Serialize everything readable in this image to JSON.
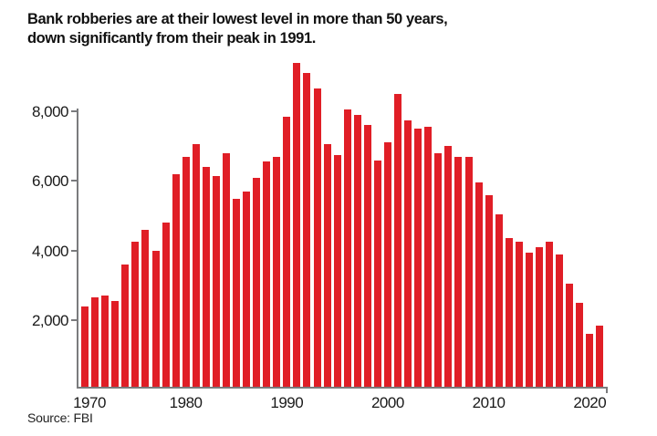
{
  "title": {
    "line1": "Bank robberies are at their lowest level in more than 50 years,",
    "line2": "down significantly from their peak in 1991."
  },
  "source": "Source: FBI",
  "colors": {
    "bar": "#e01e26",
    "axis": "#7a7b7d",
    "text": "#1a1a1a"
  },
  "chart_data": {
    "type": "bar",
    "title": "Bank robberies are at their lowest level in more than 50 years, down significantly from their peak in 1991.",
    "source": "FBI",
    "x": [
      1970,
      1971,
      1972,
      1973,
      1974,
      1975,
      1976,
      1977,
      1978,
      1979,
      1980,
      1981,
      1982,
      1983,
      1984,
      1985,
      1986,
      1987,
      1988,
      1989,
      1990,
      1991,
      1992,
      1993,
      1994,
      1995,
      1996,
      1997,
      1998,
      1999,
      2000,
      2001,
      2002,
      2003,
      2004,
      2005,
      2006,
      2007,
      2008,
      2009,
      2010,
      2011,
      2012,
      2013,
      2014,
      2015,
      2016,
      2017,
      2018,
      2019,
      2020,
      2021
    ],
    "values": [
      2400,
      2650,
      2700,
      2550,
      3600,
      4250,
      4600,
      4000,
      4800,
      6200,
      6700,
      7050,
      6400,
      6150,
      6800,
      5500,
      5700,
      6100,
      6550,
      6700,
      7850,
      9400,
      9100,
      8650,
      7050,
      6750,
      8050,
      7900,
      7600,
      6600,
      7100,
      8500,
      7750,
      7500,
      7550,
      6800,
      7000,
      6700,
      6700,
      5950,
      5600,
      5050,
      4350,
      4250,
      3950,
      4100,
      4250,
      3900,
      3050,
      2500,
      1600,
      1850
    ],
    "x_tick_years": [
      1970,
      1980,
      1990,
      2000,
      2010,
      2020
    ],
    "x_tick_labels": [
      "1970",
      "1980",
      "1990",
      "2000",
      "2010",
      "2020"
    ],
    "y_tick_values": [
      2000,
      4000,
      6000,
      8000
    ],
    "y_tick_labels": [
      "2,000",
      "4,000",
      "6,000",
      "8,000"
    ],
    "ylim": [
      0,
      9500
    ],
    "grid": false,
    "legend": null
  }
}
